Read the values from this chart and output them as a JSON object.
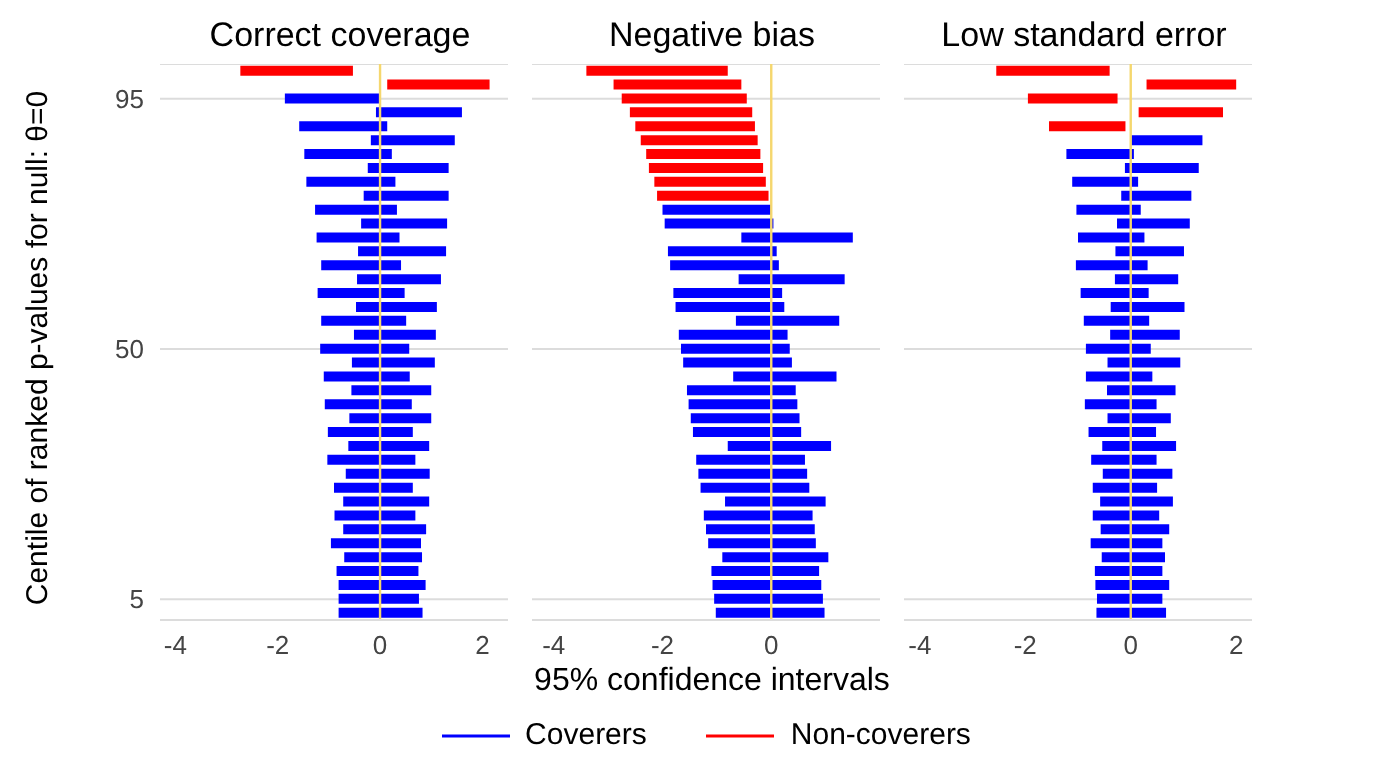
{
  "chart_data": [
    {
      "type": "bar",
      "orientation": "horizontal",
      "title": "Correct coverage",
      "ylabel": "Centile of ranked p-values for null: θ=0",
      "legend": "bottom",
      "categories": [
        null,
        null,
        "95",
        null,
        null,
        null,
        null,
        null,
        null,
        null,
        null,
        null,
        null,
        null,
        null,
        null,
        null,
        null,
        null,
        null,
        "50",
        null,
        null,
        null,
        null,
        null,
        null,
        null,
        null,
        null,
        null,
        null,
        null,
        null,
        null,
        null,
        null,
        null,
        "5",
        null
      ],
      "series": [
        {
          "name": "Coverers",
          "color": "#0000ff",
          "base": [
            null,
            null,
            -1.86,
            -0.08,
            -1.58,
            -0.18,
            -1.48,
            -0.24,
            -1.44,
            -0.32,
            -1.27,
            -0.37,
            -1.24,
            -0.43,
            -1.15,
            -0.45,
            -1.22,
            -0.47,
            -1.15,
            -0.51,
            -1.17,
            -0.55,
            -1.1,
            -0.56,
            -1.08,
            -0.6,
            -1.02,
            -0.62,
            -1.03,
            -0.67,
            -0.9,
            -0.72,
            -0.89,
            -0.72,
            -0.96,
            -0.7,
            -0.85,
            -0.81,
            -0.81,
            -0.81
          ],
          "values": [
            null,
            null,
            1.86,
            1.68,
            1.72,
            1.64,
            1.71,
            1.58,
            1.74,
            1.66,
            1.6,
            1.68,
            1.62,
            1.72,
            1.56,
            1.64,
            1.7,
            1.58,
            1.66,
            1.6,
            1.74,
            1.62,
            1.68,
            1.56,
            1.7,
            1.6,
            1.66,
            1.58,
            1.72,
            1.64,
            1.54,
            1.68,
            1.58,
            1.62,
            1.76,
            1.52,
            1.6,
            1.7,
            1.57,
            1.64
          ]
        },
        {
          "name": "Non-coverers",
          "color": "#ff0000",
          "base": [
            -2.73,
            0.14,
            null,
            null,
            null,
            null,
            null,
            null,
            null,
            null,
            null,
            null,
            null,
            null,
            null,
            null,
            null,
            null,
            null,
            null,
            null,
            null,
            null,
            null,
            null,
            null,
            null,
            null,
            null,
            null,
            null,
            null,
            null,
            null,
            null,
            null,
            null,
            null,
            null,
            null
          ],
          "values": [
            2.2,
            2.0,
            null,
            null,
            null,
            null,
            null,
            null,
            null,
            null,
            null,
            null,
            null,
            null,
            null,
            null,
            null,
            null,
            null,
            null,
            null,
            null,
            null,
            null,
            null,
            null,
            null,
            null,
            null,
            null,
            null,
            null,
            null,
            null,
            null,
            null,
            null,
            null,
            null,
            null
          ]
        }
      ],
      "xlim": [
        -4.3,
        2.5
      ],
      "xticks": [
        -4,
        -2,
        0,
        2
      ],
      "grid": "y",
      "ref_lines": [
        {
          "axis": "x",
          "value": 0,
          "color": "#f5d76e"
        }
      ]
    },
    {
      "type": "bar",
      "orientation": "horizontal",
      "title": "Negative bias",
      "xlabel": "95% confidence intervals",
      "tick_labels": "x",
      "categories": [
        null,
        null,
        "95",
        null,
        null,
        null,
        null,
        null,
        null,
        null,
        null,
        null,
        null,
        null,
        null,
        null,
        null,
        null,
        null,
        null,
        "50",
        null,
        null,
        null,
        null,
        null,
        null,
        null,
        null,
        null,
        null,
        null,
        null,
        null,
        null,
        null,
        null,
        null,
        "5",
        null
      ],
      "series": [
        {
          "color": "#0000ff",
          "base": [
            null,
            null,
            null,
            null,
            null,
            null,
            null,
            null,
            null,
            null,
            -2.0,
            -1.96,
            -0.55,
            -1.9,
            -1.86,
            -0.6,
            -1.8,
            -1.76,
            -0.65,
            -1.7,
            -1.66,
            -1.62,
            -0.7,
            -1.55,
            -1.52,
            -1.48,
            -1.44,
            -0.8,
            -1.38,
            -1.34,
            -1.3,
            -0.85,
            -1.24,
            -1.2,
            -1.16,
            -0.9,
            -1.1,
            -1.08,
            -1.05,
            -1.02
          ],
          "values": [
            null,
            null,
            null,
            null,
            null,
            null,
            null,
            null,
            null,
            null,
            2.0,
            2.0,
            2.05,
            2.0,
            2.0,
            1.95,
            2.0,
            2.0,
            1.9,
            2.0,
            2.0,
            2.0,
            1.9,
            2.0,
            2.0,
            2.0,
            1.99,
            1.9,
            2.0,
            2.0,
            2.0,
            1.85,
            2.0,
            2.0,
            1.98,
            1.95,
            1.98,
            2.0,
            2.0,
            2.0
          ]
        },
        {
          "color": "#ff0000",
          "base": [
            -3.4,
            -2.9,
            -2.75,
            -2.6,
            -2.5,
            -2.4,
            -2.3,
            -2.25,
            -2.15,
            -2.1,
            null,
            null,
            null,
            null,
            null,
            null,
            null,
            null,
            null,
            null,
            null,
            null,
            null,
            null,
            null,
            null,
            null,
            null,
            null,
            null,
            null,
            null,
            null,
            null,
            null,
            null,
            null,
            null,
            null,
            null
          ],
          "values": [
            2.6,
            2.35,
            2.3,
            2.25,
            2.2,
            2.15,
            2.1,
            2.1,
            2.05,
            2.05,
            null,
            null,
            null,
            null,
            null,
            null,
            null,
            null,
            null,
            null,
            null,
            null,
            null,
            null,
            null,
            null,
            null,
            null,
            null,
            null,
            null,
            null,
            null,
            null,
            null,
            null,
            null,
            null,
            null,
            null
          ]
        }
      ],
      "xlim": [
        -4.4,
        2.0
      ],
      "xticks": [
        -4,
        -2,
        0
      ],
      "grid": "y",
      "ref_lines": [
        {
          "axis": "x",
          "value": 0,
          "color": "#f5d76e"
        }
      ]
    },
    {
      "type": "bar",
      "orientation": "horizontal",
      "title": "Low standard error",
      "tick_labels": "x",
      "categories": [
        null,
        null,
        "95",
        null,
        null,
        null,
        null,
        null,
        null,
        null,
        null,
        null,
        null,
        null,
        null,
        null,
        null,
        null,
        null,
        null,
        "50",
        null,
        null,
        null,
        null,
        null,
        null,
        null,
        null,
        null,
        null,
        null,
        null,
        null,
        null,
        null,
        null,
        null,
        "5",
        null
      ],
      "series": [
        {
          "color": "#0000ff",
          "base": [
            null,
            null,
            null,
            null,
            null,
            0.0,
            -1.22,
            -0.11,
            -1.11,
            -0.18,
            -1.03,
            -0.26,
            -1.0,
            -0.29,
            -1.04,
            -0.3,
            -0.95,
            -0.38,
            -0.89,
            -0.39,
            -0.85,
            -0.44,
            -0.85,
            -0.45,
            -0.87,
            -0.44,
            -0.8,
            -0.54,
            -0.75,
            -0.53,
            -0.72,
            -0.58,
            -0.72,
            -0.57,
            -0.76,
            -0.55,
            -0.68,
            -0.67,
            -0.64,
            -0.65
          ],
          "values": [
            null,
            null,
            null,
            null,
            null,
            1.36,
            1.28,
            1.4,
            1.25,
            1.33,
            1.22,
            1.38,
            1.26,
            1.3,
            1.36,
            1.2,
            1.29,
            1.4,
            1.24,
            1.32,
            1.23,
            1.38,
            1.26,
            1.3,
            1.36,
            1.2,
            1.28,
            1.4,
            1.24,
            1.32,
            1.22,
            1.38,
            1.26,
            1.3,
            1.36,
            1.2,
            1.28,
            1.4,
            1.24,
            1.32
          ]
        },
        {
          "color": "#ff0000",
          "base": [
            -2.55,
            0.3,
            -1.95,
            0.15,
            -1.55,
            null,
            null,
            null,
            null,
            null,
            null,
            null,
            null,
            null,
            null,
            null,
            null,
            null,
            null,
            null,
            null,
            null,
            null,
            null,
            null,
            null,
            null,
            null,
            null,
            null,
            null,
            null,
            null,
            null,
            null,
            null,
            null,
            null,
            null,
            null
          ],
          "values": [
            2.15,
            1.7,
            1.7,
            1.6,
            1.45,
            null,
            null,
            null,
            null,
            null,
            null,
            null,
            null,
            null,
            null,
            null,
            null,
            null,
            null,
            null,
            null,
            null,
            null,
            null,
            null,
            null,
            null,
            null,
            null,
            null,
            null,
            null,
            null,
            null,
            null,
            null,
            null,
            null,
            null,
            null
          ]
        }
      ],
      "xlim": [
        -4.3,
        2.3
      ],
      "xticks": [
        -4,
        -2,
        0,
        2
      ],
      "grid": "y",
      "ref_lines": [
        {
          "axis": "x",
          "value": 0,
          "color": "#f5d76e"
        }
      ]
    }
  ]
}
